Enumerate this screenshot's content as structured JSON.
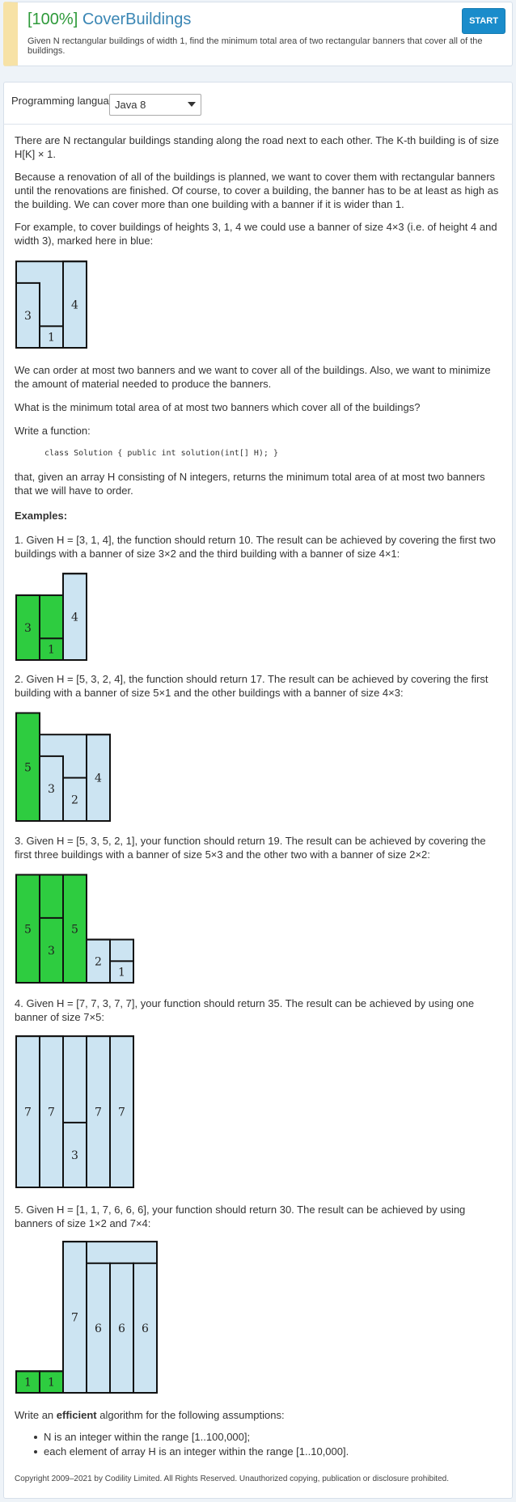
{
  "header": {
    "score": "[100%]",
    "task_name": "CoverBuildings",
    "description": "Given N rectangular buildings of width 1, find the minimum total area of two rectangular banners that cover all of the buildings.",
    "start_label": "START"
  },
  "language": {
    "label": "Programming language:",
    "selected": "Java 8"
  },
  "text": {
    "p1": "There are N rectangular buildings standing along the road next to each other. The K-th building is of size H[K] × 1.",
    "p2": "Because a renovation of all of the buildings is planned, we want to cover them with rectangular banners until the renovations are finished. Of course, to cover a building, the banner has to be at least as high as the building. We can cover more than one building with a banner if it is wider than 1.",
    "p3": "For example, to cover buildings of heights 3, 1, 4 we could use a banner of size 4×3 (i.e. of height 4 and width 3), marked here in blue:",
    "p4": "We can order at most two banners and we want to cover all of the buildings. Also, we want to minimize the amount of material needed to produce the banners.",
    "p5": "What is the minimum total area of at most two banners which cover all of the buildings?",
    "p6": "Write a function:",
    "code": "class Solution { public int solution(int[] H); }",
    "p7": "that, given an array H consisting of N integers, returns the minimum total area of at most two banners that we will have to order.",
    "examples_heading": "Examples:",
    "ex1": "1. Given H = [3, 1, 4], the function should return 10. The result can be achieved by covering the first two buildings with a banner of size 3×2 and the third building with a banner of size 4×1:",
    "ex2": "2. Given H = [5, 3, 2, 4], the function should return 17. The result can be achieved by covering the first building with a banner of size 5×1 and the other buildings with a banner of size 4×3:",
    "ex3": "3. Given H = [5, 3, 5, 2, 1], your function should return 19. The result can be achieved by covering the first three buildings with a banner of size 5×3 and the other two with a banner of size 2×2:",
    "ex4": "4. Given H = [7, 7, 3, 7, 7], your function should return 35. The result can be achieved by using one banner of size 7×5:",
    "ex5": "5. Given H = [1, 1, 7, 6, 6, 6], your function should return 30. The result can be achieved by using banners of size 1×2 and 7×4:",
    "assume_pre": "Write an ",
    "assume_bold": "efficient",
    "assume_post": " algorithm for the following assumptions:",
    "bullet1": "N is an integer within the range [1..100,000];",
    "bullet2": "each element of array H is an integer within the range [1..10,000]."
  },
  "footer": "Copyright 2009–2021 by Codility Limited. All Rights Reserved. Unauthorized copying, publication or disclosure prohibited.",
  "colors": {
    "blue_banner": "#cce4f2",
    "green_banner": "#2ecc40",
    "link": "#3a86b4",
    "score": "#2e9a3a",
    "button": "#1a8ccb"
  },
  "figures": [
    {
      "heights": [
        3,
        1,
        4
      ],
      "banners": [
        {
          "from": 0,
          "to": 2,
          "height": 4,
          "color": "blue"
        }
      ]
    },
    {
      "heights": [
        3,
        1,
        4
      ],
      "banners": [
        {
          "from": 0,
          "to": 1,
          "height": 3,
          "color": "green"
        },
        {
          "from": 2,
          "to": 2,
          "height": 4,
          "color": "blue"
        }
      ]
    },
    {
      "heights": [
        5,
        3,
        2,
        4
      ],
      "banners": [
        {
          "from": 0,
          "to": 0,
          "height": 5,
          "color": "green"
        },
        {
          "from": 1,
          "to": 3,
          "height": 4,
          "color": "blue"
        }
      ]
    },
    {
      "heights": [
        5,
        3,
        5,
        2,
        1
      ],
      "banners": [
        {
          "from": 0,
          "to": 2,
          "height": 5,
          "color": "green"
        },
        {
          "from": 3,
          "to": 4,
          "height": 2,
          "color": "blue"
        }
      ]
    },
    {
      "heights": [
        7,
        7,
        3,
        7,
        7
      ],
      "banners": [
        {
          "from": 0,
          "to": 4,
          "height": 7,
          "color": "blue"
        }
      ]
    },
    {
      "heights": [
        1,
        1,
        7,
        6,
        6,
        6
      ],
      "banners": [
        {
          "from": 0,
          "to": 1,
          "height": 1,
          "color": "green"
        },
        {
          "from": 2,
          "to": 5,
          "height": 7,
          "color": "blue"
        }
      ]
    }
  ]
}
